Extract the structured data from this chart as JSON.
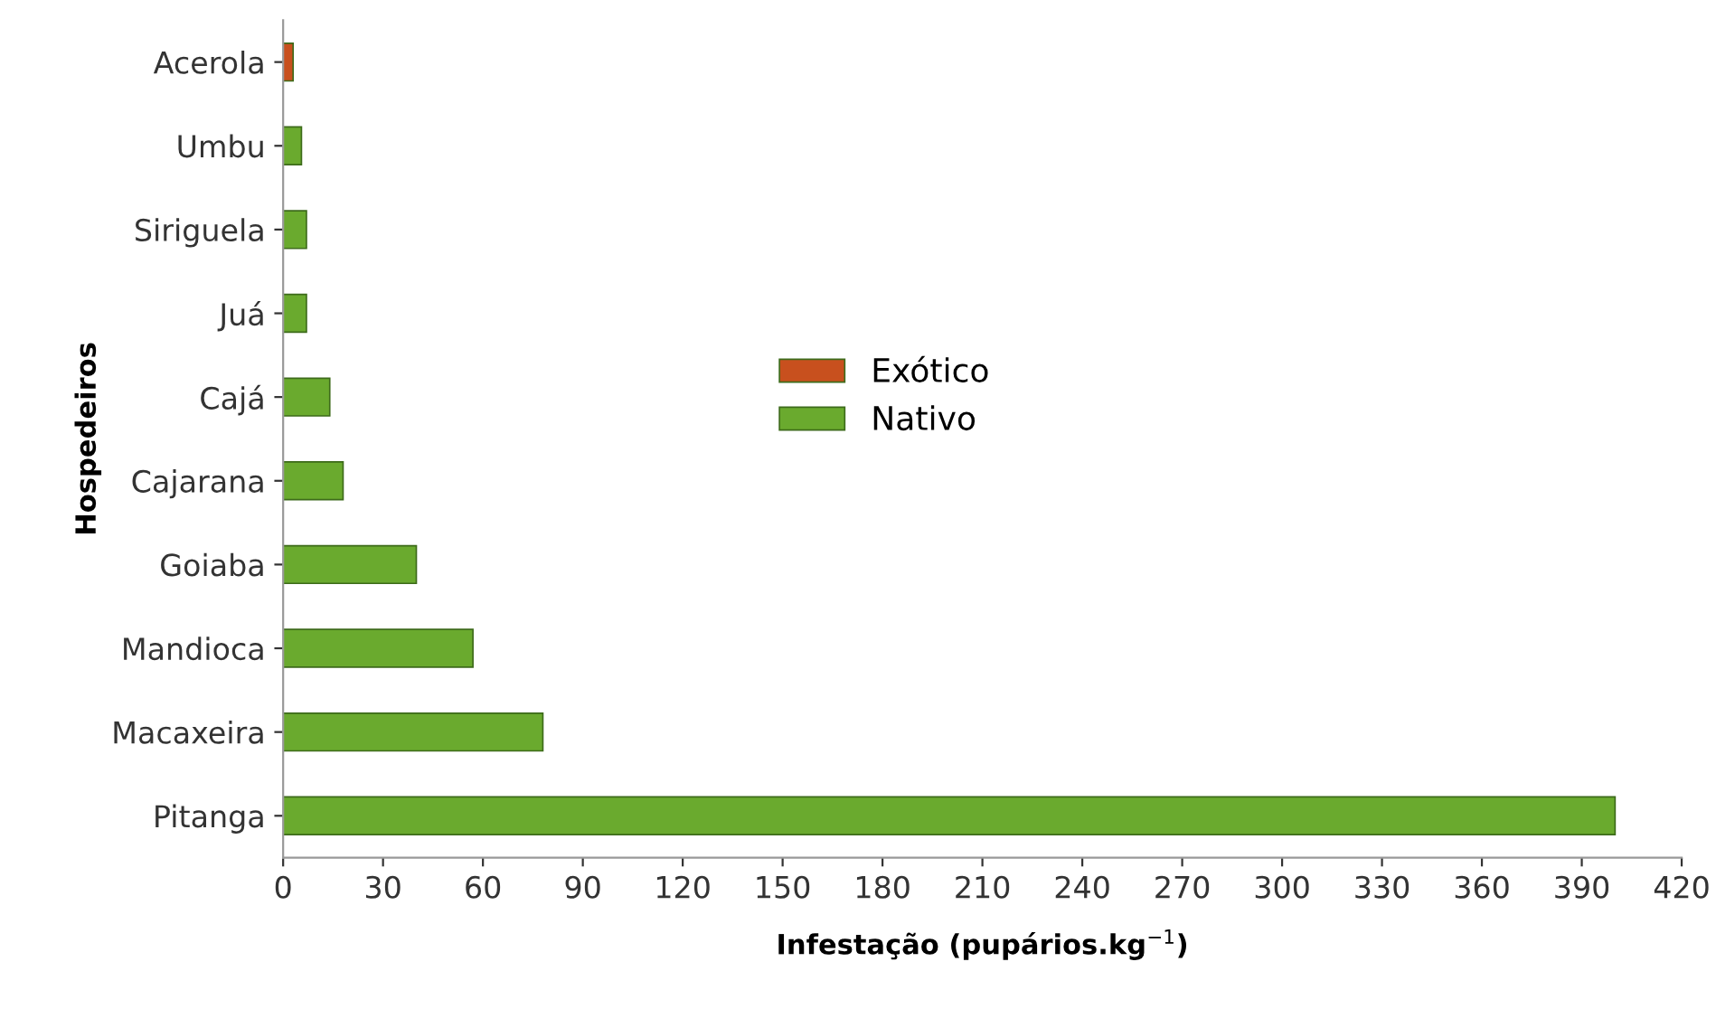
{
  "chart_data": {
    "type": "bar",
    "orientation": "horizontal",
    "categories": [
      "Acerola",
      "Umbu",
      "Siriguela",
      "Juá",
      "Cajá",
      "Cajarana",
      "Goiaba",
      "Mandioca",
      "Macaxeira",
      "Pitanga"
    ],
    "series": [
      {
        "name": "Exótico",
        "color": "#c8501e",
        "values": [
          3,
          null,
          null,
          null,
          null,
          null,
          null,
          null,
          null,
          null
        ]
      },
      {
        "name": "Nativo",
        "color": "#6aaa2e",
        "values": [
          null,
          5.5,
          7,
          7,
          14,
          18,
          40,
          57,
          78,
          400
        ]
      }
    ],
    "xlim": [
      0,
      420
    ],
    "xticks": [
      0,
      30,
      60,
      90,
      120,
      150,
      180,
      210,
      240,
      270,
      300,
      330,
      360,
      390,
      420
    ],
    "xlabel": "Infestação (pupários.kg$^{−1}$)",
    "ylabel": "Hospedeiros",
    "legend": "center",
    "grid": false
  }
}
